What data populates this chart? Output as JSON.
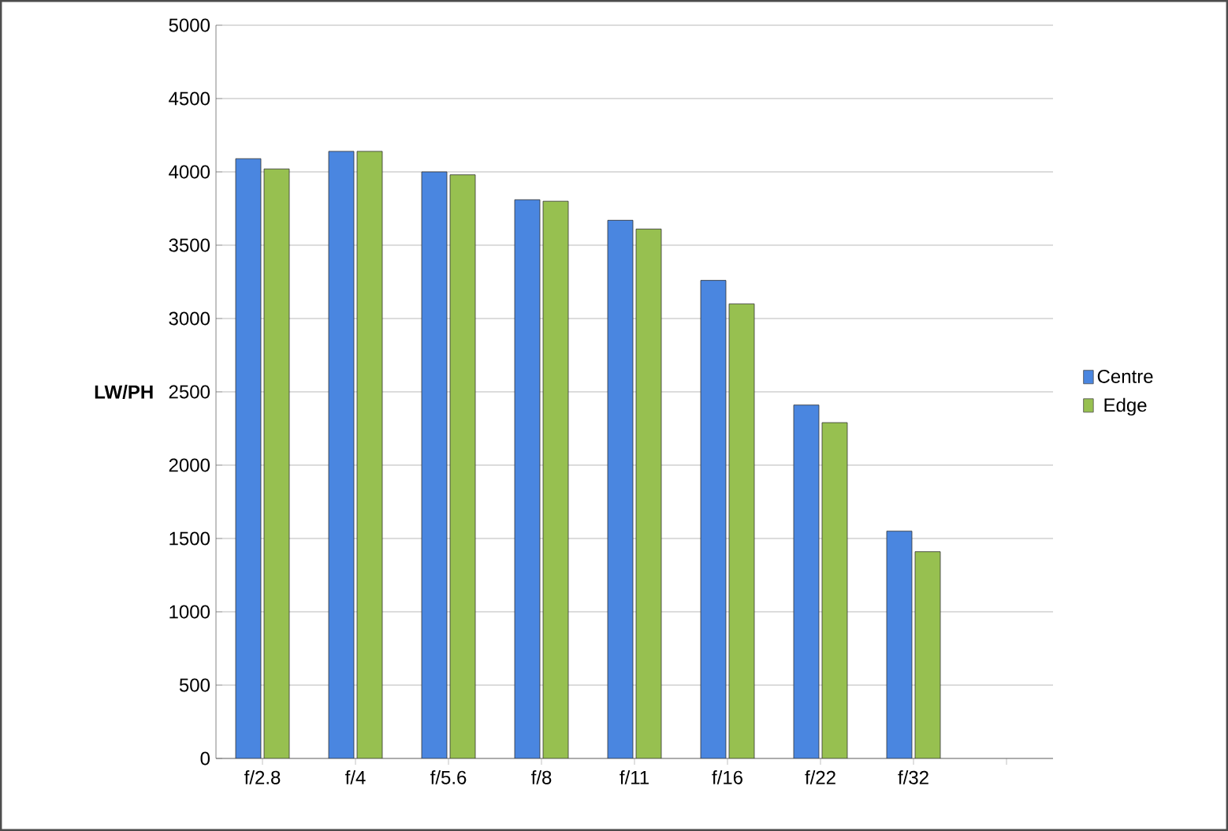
{
  "chart_data": {
    "type": "bar",
    "ylabel": "LW/PH",
    "categories": [
      "f/2.8",
      "f/4",
      "f/5.6",
      "f/8",
      "f/11",
      "f/16",
      "f/22",
      "f/32",
      null
    ],
    "series": [
      {
        "name": "Centre",
        "color": "#4a86e0",
        "values": [
          4090,
          4140,
          4000,
          3810,
          3670,
          3260,
          2410,
          1550,
          null
        ]
      },
      {
        "name": "Edge",
        "color": "#97c050",
        "values": [
          4020,
          4140,
          3980,
          3800,
          3610,
          3100,
          2290,
          1410,
          null
        ]
      }
    ],
    "ylim": [
      0,
      5000
    ],
    "yticks": [
      0,
      500,
      1000,
      1500,
      2000,
      2500,
      3000,
      3500,
      4000,
      4500,
      5000
    ],
    "grid": "y",
    "legend": "right"
  }
}
